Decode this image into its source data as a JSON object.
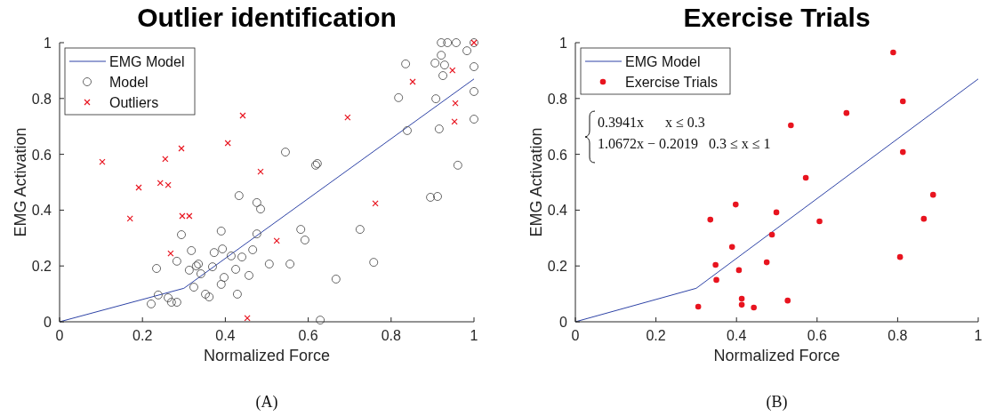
{
  "chart_data": [
    {
      "type": "scatter",
      "title": "Outlier identification",
      "xlabel": "Normalized Force",
      "ylabel": "EMG Activation",
      "xlim": [
        0,
        1
      ],
      "ylim": [
        0,
        1
      ],
      "xticks": [
        0,
        0.2,
        0.4,
        0.6,
        0.8,
        1
      ],
      "yticks": [
        0,
        0.2,
        0.4,
        0.6,
        0.8,
        1
      ],
      "grid": false,
      "legend": "top left",
      "annotations": [
        "(A)"
      ],
      "series": [
        {
          "name": "EMG Model",
          "type": "line",
          "marker": "none",
          "color": "#2e43a6",
          "x": [
            0,
            0.3,
            1
          ],
          "values": [
            0,
            0.12,
            0.87
          ]
        },
        {
          "name": "Model",
          "marker": "circle",
          "color": "#555555",
          "x": [
            0.433,
            0.476,
            0.485,
            0.294,
            0.39,
            0.476,
            0.318,
            0.393,
            0.373,
            0.466,
            0.414,
            0.44,
            0.234,
            0.283,
            0.335,
            0.33,
            0.313,
            0.341,
            0.369,
            0.425,
            0.397,
            0.457,
            0.39,
            0.324,
            0.506,
            0.238,
            0.352,
            0.361,
            0.429,
            0.262,
            0.27,
            0.283,
            0.221,
            0.545,
            0.618,
            0.622,
            0.582,
            0.592,
            0.556,
            0.725,
            0.758,
            0.667,
            0.629,
            0.835,
            0.818,
            0.839,
            0.895,
            0.912,
            0.961,
            0.916,
            0.908,
            0.925,
            0.906,
            0.929,
            0.921,
            0.921,
            0.936,
            0.957,
            0.983,
            1,
            1,
            1,
            1
          ],
          "values": [
            0.452,
            0.427,
            0.404,
            0.312,
            0.325,
            0.315,
            0.255,
            0.261,
            0.248,
            0.258,
            0.236,
            0.232,
            0.191,
            0.217,
            0.207,
            0.2,
            0.185,
            0.172,
            0.197,
            0.188,
            0.159,
            0.166,
            0.134,
            0.124,
            0.207,
            0.096,
            0.099,
            0.089,
            0.099,
            0.086,
            0.07,
            0.07,
            0.064,
            0.608,
            0.561,
            0.567,
            0.331,
            0.293,
            0.207,
            0.331,
            0.213,
            0.153,
            0.006,
            0.924,
            0.803,
            0.685,
            0.446,
            0.449,
            0.561,
            0.691,
            0.799,
            0.882,
            0.927,
            0.92,
            0.955,
            1,
            1,
            1,
            0.971,
            1,
            0.914,
            0.825,
            0.726
          ]
        },
        {
          "name": "Outliers",
          "marker": "cross",
          "color": "#e8141f",
          "x": [
            0.103,
            0.17,
            0.191,
            0.243,
            0.262,
            0.255,
            0.294,
            0.296,
            0.313,
            0.268,
            0.406,
            0.442,
            0.485,
            0.453,
            0.524,
            0.695,
            0.762,
            0.852,
            0.948,
            0.955,
            0.953,
            1
          ],
          "values": [
            0.573,
            0.37,
            0.481,
            0.497,
            0.49,
            0.583,
            0.621,
            0.379,
            0.379,
            0.245,
            0.64,
            0.739,
            0.538,
            0.013,
            0.29,
            0.732,
            0.424,
            0.86,
            0.901,
            0.783,
            0.717,
            1
          ]
        }
      ]
    },
    {
      "type": "scatter",
      "title": "Exercise Trials",
      "xlabel": "Normalized Force",
      "ylabel": "EMG Activation",
      "xlim": [
        0,
        1
      ],
      "ylim": [
        0,
        1
      ],
      "xticks": [
        0,
        0.2,
        0.4,
        0.6,
        0.8,
        1
      ],
      "yticks": [
        0,
        0.2,
        0.4,
        0.6,
        0.8,
        1
      ],
      "grid": false,
      "legend": "top left",
      "annotations": [
        "0.3941x      x ≤ 0.3",
        "1.0672x − 0.2019   0.3 ≤ x ≤ 1",
        "(B)"
      ],
      "series": [
        {
          "name": "EMG Model",
          "type": "line",
          "marker": "none",
          "color": "#2e43a6",
          "x": [
            0,
            0.3,
            1
          ],
          "values": [
            0,
            0.12,
            0.87
          ]
        },
        {
          "name": "Exercise Trials",
          "marker": "circle",
          "color": "#e8141f",
          "x": [
            0.398,
            0.335,
            0.499,
            0.488,
            0.389,
            0.348,
            0.406,
            0.475,
            0.35,
            0.413,
            0.413,
            0.443,
            0.305,
            0.789,
            0.813,
            0.673,
            0.535,
            0.813,
            0.572,
            0.888,
            0.865,
            0.606,
            0.806,
            0.527
          ],
          "values": [
            0.42,
            0.366,
            0.392,
            0.312,
            0.268,
            0.204,
            0.185,
            0.213,
            0.15,
            0.083,
            0.061,
            0.051,
            0.054,
            0.965,
            0.79,
            0.748,
            0.704,
            0.608,
            0.516,
            0.455,
            0.369,
            0.36,
            0.232,
            0.076
          ]
        }
      ]
    }
  ]
}
